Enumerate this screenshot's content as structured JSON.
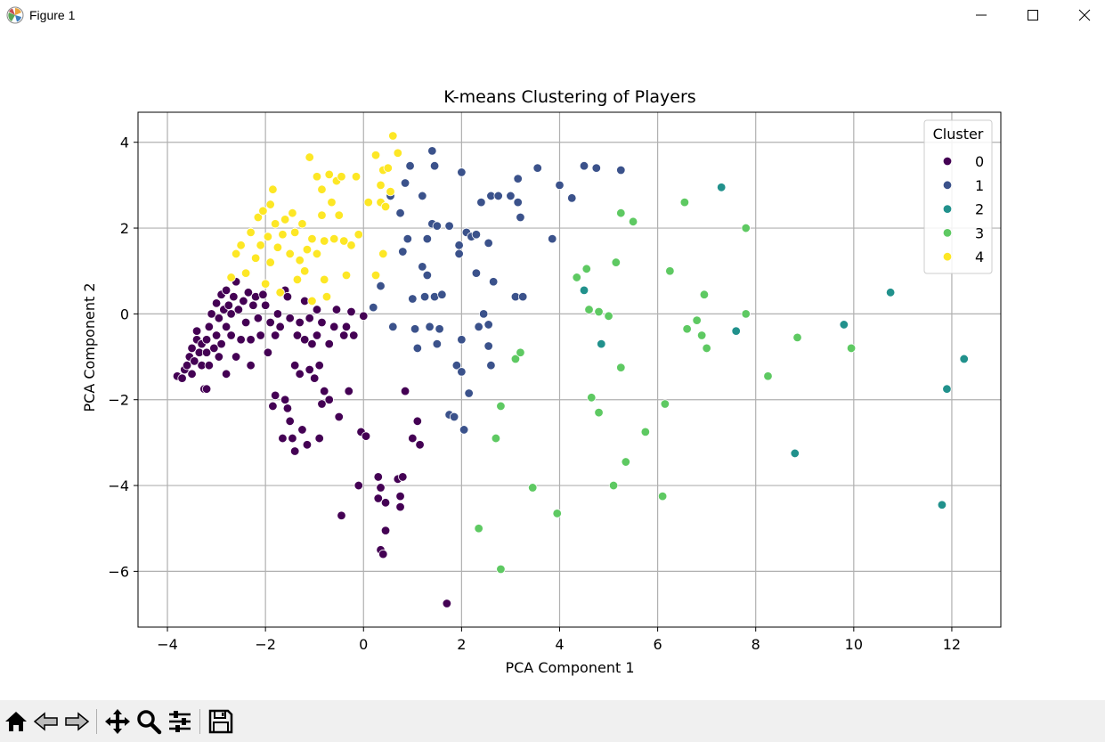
{
  "window": {
    "title": "Figure 1",
    "icons": [
      "matplotlib-logo-icon",
      "minimize-icon",
      "maximize-icon",
      "close-icon"
    ]
  },
  "toolbar": {
    "buttons": [
      "home-icon",
      "back-icon",
      "forward-icon",
      "pan-icon",
      "zoom-icon",
      "configure-subplots-icon",
      "save-icon"
    ]
  },
  "chart_data": {
    "type": "scatter",
    "title": "K-means Clustering of Players",
    "xlabel": "PCA Component 1",
    "ylabel": "PCA Component 2",
    "xlim": [
      -4.6,
      13.0
    ],
    "ylim": [
      -7.3,
      4.7
    ],
    "xticks": [
      -4,
      -2,
      0,
      2,
      4,
      6,
      8,
      10,
      12
    ],
    "yticks": [
      -6,
      -4,
      -2,
      0,
      2,
      4
    ],
    "grid": true,
    "legend": {
      "title": "Cluster",
      "position": "top-right"
    },
    "series": [
      {
        "name": "0",
        "color": "#440154",
        "points": [
          [
            -3.8,
            -1.45
          ],
          [
            -3.7,
            -1.5
          ],
          [
            -3.65,
            -1.3
          ],
          [
            -3.6,
            -1.2
          ],
          [
            -3.55,
            -1.0
          ],
          [
            -3.5,
            -1.4
          ],
          [
            -3.5,
            -0.8
          ],
          [
            -3.45,
            -1.1
          ],
          [
            -3.4,
            -0.6
          ],
          [
            -3.4,
            -0.4
          ],
          [
            -3.35,
            -0.9
          ],
          [
            -3.3,
            -1.2
          ],
          [
            -3.3,
            -0.7
          ],
          [
            -3.25,
            -1.75
          ],
          [
            -3.2,
            -0.9
          ],
          [
            -3.2,
            -0.6
          ],
          [
            -3.2,
            -1.75
          ],
          [
            -3.15,
            -0.3
          ],
          [
            -3.15,
            -1.2
          ],
          [
            -3.1,
            0.0
          ],
          [
            -3.05,
            -0.8
          ],
          [
            -3.0,
            -0.5
          ],
          [
            -3.0,
            0.25
          ],
          [
            -2.95,
            -0.1
          ],
          [
            -2.95,
            -1.0
          ],
          [
            -2.9,
            0.45
          ],
          [
            -2.9,
            -0.7
          ],
          [
            -2.85,
            0.1
          ],
          [
            -2.8,
            0.55
          ],
          [
            -2.8,
            -0.3
          ],
          [
            -2.8,
            -1.4
          ],
          [
            -2.75,
            0.2
          ],
          [
            -2.7,
            0.0
          ],
          [
            -2.7,
            -0.5
          ],
          [
            -2.65,
            0.4
          ],
          [
            -2.6,
            0.75
          ],
          [
            -2.6,
            -1.0
          ],
          [
            -2.55,
            0.1
          ],
          [
            -2.5,
            -0.6
          ],
          [
            -2.45,
            0.3
          ],
          [
            -2.4,
            -0.2
          ],
          [
            -2.35,
            0.5
          ],
          [
            -2.3,
            -1.2
          ],
          [
            -2.3,
            -0.6
          ],
          [
            -2.25,
            0.2
          ],
          [
            -2.2,
            0.4
          ],
          [
            -2.15,
            -0.1
          ],
          [
            -2.1,
            -0.5
          ],
          [
            -2.05,
            0.45
          ],
          [
            -2.0,
            0.2
          ],
          [
            -1.95,
            -0.9
          ],
          [
            -1.9,
            -0.2
          ],
          [
            -1.85,
            -2.15
          ],
          [
            -1.8,
            -0.5
          ],
          [
            -1.8,
            -1.9
          ],
          [
            -1.75,
            0.0
          ],
          [
            -1.7,
            -0.3
          ],
          [
            -1.65,
            -2.9
          ],
          [
            -1.6,
            0.55
          ],
          [
            -1.6,
            -2.0
          ],
          [
            -1.55,
            0.4
          ],
          [
            -1.55,
            -2.2
          ],
          [
            -1.5,
            -0.1
          ],
          [
            -1.5,
            -2.5
          ],
          [
            -1.45,
            -2.9
          ],
          [
            -1.4,
            -1.2
          ],
          [
            -1.4,
            -3.2
          ],
          [
            -1.35,
            -0.5
          ],
          [
            -1.3,
            -0.2
          ],
          [
            -1.3,
            -1.4
          ],
          [
            -1.25,
            -2.7
          ],
          [
            -1.2,
            0.3
          ],
          [
            -1.2,
            -0.6
          ],
          [
            -1.15,
            -3.05
          ],
          [
            -1.1,
            -0.1
          ],
          [
            -1.1,
            -1.3
          ],
          [
            -1.05,
            -0.7
          ],
          [
            -1.0,
            -1.5
          ],
          [
            -0.95,
            0.1
          ],
          [
            -0.95,
            -0.5
          ],
          [
            -0.9,
            -2.9
          ],
          [
            -0.9,
            -1.2
          ],
          [
            -0.85,
            -0.2
          ],
          [
            -0.85,
            -2.1
          ],
          [
            -0.8,
            -1.8
          ],
          [
            -0.75,
            0.4
          ],
          [
            -0.7,
            -0.7
          ],
          [
            -0.7,
            -2.0
          ],
          [
            -0.6,
            -0.3
          ],
          [
            -0.55,
            0.1
          ],
          [
            -0.5,
            -2.4
          ],
          [
            -0.45,
            -4.7
          ],
          [
            -0.4,
            -0.5
          ],
          [
            -0.35,
            -0.3
          ],
          [
            -0.3,
            -1.8
          ],
          [
            -0.25,
            0.05
          ],
          [
            -0.2,
            -0.5
          ],
          [
            -0.1,
            -4.0
          ],
          [
            -0.05,
            -2.75
          ],
          [
            0.0,
            -0.05
          ],
          [
            0.05,
            -2.85
          ],
          [
            0.3,
            -3.8
          ],
          [
            0.3,
            -4.3
          ],
          [
            0.35,
            -4.05
          ],
          [
            0.35,
            -5.5
          ],
          [
            0.4,
            -5.6
          ],
          [
            0.45,
            -4.4
          ],
          [
            0.45,
            -5.05
          ],
          [
            0.7,
            -3.85
          ],
          [
            0.75,
            -4.5
          ],
          [
            0.75,
            -4.25
          ],
          [
            0.8,
            -3.8
          ],
          [
            0.85,
            -1.8
          ],
          [
            1.0,
            -2.9
          ],
          [
            1.1,
            -2.5
          ],
          [
            1.15,
            -3.05
          ],
          [
            1.7,
            -6.75
          ]
        ]
      },
      {
        "name": "1",
        "color": "#3b528b",
        "points": [
          [
            0.2,
            0.15
          ],
          [
            0.35,
            0.65
          ],
          [
            0.55,
            2.75
          ],
          [
            0.6,
            -0.3
          ],
          [
            0.75,
            2.35
          ],
          [
            0.8,
            1.45
          ],
          [
            0.85,
            3.05
          ],
          [
            0.9,
            1.75
          ],
          [
            0.95,
            3.45
          ],
          [
            1.0,
            0.35
          ],
          [
            1.05,
            -0.35
          ],
          [
            1.1,
            -0.8
          ],
          [
            1.2,
            2.75
          ],
          [
            1.2,
            1.1
          ],
          [
            1.25,
            0.4
          ],
          [
            1.3,
            0.9
          ],
          [
            1.3,
            1.75
          ],
          [
            1.35,
            -0.3
          ],
          [
            1.4,
            2.1
          ],
          [
            1.4,
            3.8
          ],
          [
            1.45,
            0.4
          ],
          [
            1.45,
            3.45
          ],
          [
            1.5,
            2.05
          ],
          [
            1.5,
            -0.7
          ],
          [
            1.55,
            -0.35
          ],
          [
            1.6,
            0.45
          ],
          [
            1.75,
            2.05
          ],
          [
            1.75,
            -2.35
          ],
          [
            1.85,
            -2.4
          ],
          [
            1.9,
            -1.2
          ],
          [
            1.95,
            1.4
          ],
          [
            1.95,
            1.6
          ],
          [
            2.0,
            3.3
          ],
          [
            2.0,
            -0.6
          ],
          [
            2.0,
            -1.35
          ],
          [
            2.05,
            -2.7
          ],
          [
            2.1,
            1.9
          ],
          [
            2.15,
            -1.85
          ],
          [
            2.2,
            1.8
          ],
          [
            2.3,
            1.85
          ],
          [
            2.3,
            0.95
          ],
          [
            2.35,
            -0.3
          ],
          [
            2.4,
            2.6
          ],
          [
            2.45,
            0.0
          ],
          [
            2.55,
            1.65
          ],
          [
            2.55,
            -0.75
          ],
          [
            2.55,
            -0.25
          ],
          [
            2.6,
            2.75
          ],
          [
            2.6,
            -1.2
          ],
          [
            2.65,
            0.75
          ],
          [
            2.75,
            2.75
          ],
          [
            3.0,
            2.75
          ],
          [
            3.1,
            0.4
          ],
          [
            3.15,
            3.15
          ],
          [
            3.15,
            2.6
          ],
          [
            3.2,
            2.25
          ],
          [
            3.25,
            0.4
          ],
          [
            3.55,
            3.4
          ],
          [
            3.85,
            1.75
          ],
          [
            4.0,
            3.0
          ],
          [
            4.25,
            2.7
          ],
          [
            4.5,
            3.45
          ],
          [
            4.75,
            3.4
          ],
          [
            5.25,
            3.35
          ]
        ]
      },
      {
        "name": "2",
        "color": "#21918c",
        "points": [
          [
            4.5,
            0.55
          ],
          [
            4.85,
            -0.7
          ],
          [
            7.3,
            2.95
          ],
          [
            7.6,
            -0.4
          ],
          [
            8.8,
            -3.25
          ],
          [
            9.8,
            -0.25
          ],
          [
            10.75,
            0.5
          ],
          [
            11.8,
            -4.45
          ],
          [
            11.9,
            -1.75
          ],
          [
            12.25,
            -1.05
          ]
        ]
      },
      {
        "name": "3",
        "color": "#5ec962",
        "points": [
          [
            2.35,
            -5.0
          ],
          [
            2.7,
            -2.9
          ],
          [
            2.8,
            -2.15
          ],
          [
            2.8,
            -5.95
          ],
          [
            3.1,
            -1.05
          ],
          [
            3.2,
            -0.9
          ],
          [
            3.45,
            -4.05
          ],
          [
            3.95,
            -4.65
          ],
          [
            4.35,
            0.85
          ],
          [
            4.55,
            1.05
          ],
          [
            4.6,
            0.1
          ],
          [
            4.65,
            -1.95
          ],
          [
            4.8,
            0.05
          ],
          [
            4.8,
            -2.3
          ],
          [
            5.0,
            -0.05
          ],
          [
            5.1,
            -4.0
          ],
          [
            5.15,
            1.2
          ],
          [
            5.25,
            2.35
          ],
          [
            5.25,
            -1.25
          ],
          [
            5.35,
            -3.45
          ],
          [
            5.5,
            2.15
          ],
          [
            5.75,
            -2.75
          ],
          [
            6.1,
            -4.25
          ],
          [
            6.15,
            -2.1
          ],
          [
            6.25,
            1.0
          ],
          [
            6.55,
            2.6
          ],
          [
            6.6,
            -0.35
          ],
          [
            6.8,
            -0.15
          ],
          [
            6.9,
            -0.5
          ],
          [
            6.95,
            0.45
          ],
          [
            7.0,
            -0.8
          ],
          [
            7.8,
            0.0
          ],
          [
            7.8,
            2.0
          ],
          [
            8.25,
            -1.45
          ],
          [
            8.85,
            -0.55
          ],
          [
            9.95,
            -0.8
          ]
        ]
      },
      {
        "name": "4",
        "color": "#fde725",
        "points": [
          [
            -2.7,
            0.85
          ],
          [
            -2.6,
            1.4
          ],
          [
            -2.5,
            1.6
          ],
          [
            -2.4,
            0.95
          ],
          [
            -2.3,
            1.9
          ],
          [
            -2.2,
            1.3
          ],
          [
            -2.15,
            2.25
          ],
          [
            -2.1,
            1.6
          ],
          [
            -2.05,
            2.4
          ],
          [
            -2.0,
            0.7
          ],
          [
            -1.95,
            1.8
          ],
          [
            -1.9,
            2.55
          ],
          [
            -1.9,
            1.2
          ],
          [
            -1.85,
            2.9
          ],
          [
            -1.8,
            2.1
          ],
          [
            -1.75,
            1.55
          ],
          [
            -1.7,
            0.5
          ],
          [
            -1.65,
            1.85
          ],
          [
            -1.6,
            2.2
          ],
          [
            -1.5,
            1.4
          ],
          [
            -1.45,
            2.35
          ],
          [
            -1.4,
            1.9
          ],
          [
            -1.35,
            0.8
          ],
          [
            -1.3,
            1.25
          ],
          [
            -1.25,
            2.1
          ],
          [
            -1.2,
            1.0
          ],
          [
            -1.15,
            1.5
          ],
          [
            -1.1,
            3.65
          ],
          [
            -1.05,
            1.75
          ],
          [
            -1.05,
            0.3
          ],
          [
            -0.95,
            1.4
          ],
          [
            -0.95,
            3.2
          ],
          [
            -0.85,
            2.9
          ],
          [
            -0.85,
            2.3
          ],
          [
            -0.8,
            1.7
          ],
          [
            -0.8,
            0.8
          ],
          [
            -0.75,
            0.4
          ],
          [
            -0.7,
            3.25
          ],
          [
            -0.65,
            2.6
          ],
          [
            -0.6,
            1.75
          ],
          [
            -0.55,
            3.1
          ],
          [
            -0.5,
            2.3
          ],
          [
            -0.45,
            3.2
          ],
          [
            -0.4,
            1.7
          ],
          [
            -0.35,
            0.9
          ],
          [
            -0.25,
            1.6
          ],
          [
            -0.15,
            3.2
          ],
          [
            -0.1,
            1.85
          ],
          [
            0.1,
            2.6
          ],
          [
            0.25,
            3.7
          ],
          [
            0.25,
            0.9
          ],
          [
            0.35,
            2.6
          ],
          [
            0.35,
            3.0
          ],
          [
            0.4,
            3.35
          ],
          [
            0.4,
            1.4
          ],
          [
            0.45,
            2.5
          ],
          [
            0.5,
            3.4
          ],
          [
            0.55,
            2.85
          ],
          [
            0.6,
            4.15
          ],
          [
            0.7,
            3.75
          ]
        ]
      }
    ]
  }
}
